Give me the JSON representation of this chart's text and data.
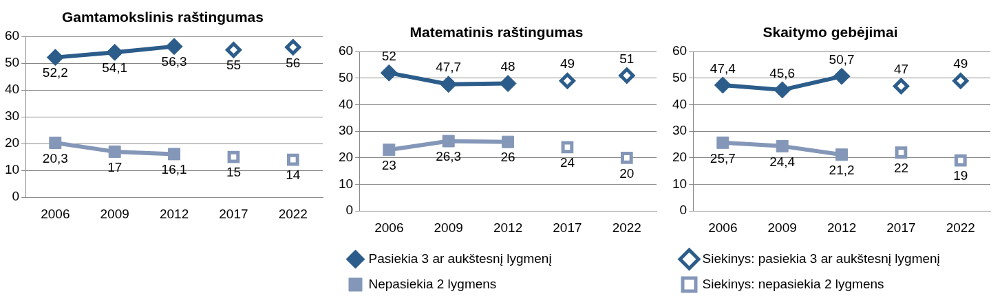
{
  "chart_data": [
    {
      "type": "line",
      "title": "Gamtamokslinis raštingumas",
      "categories": [
        "2006",
        "2009",
        "2012",
        "2017",
        "2022"
      ],
      "ylim": [
        0,
        60
      ],
      "yticks": [
        0,
        10,
        20,
        30,
        40,
        50,
        60
      ],
      "grid": "y",
      "legend": false,
      "line_style": "solid",
      "series": [
        {
          "color": "#2b5c8a",
          "marker": "diamond",
          "values": [
            52.2,
            54.1,
            56.3,
            null,
            null
          ],
          "value_labels": [
            "52,2",
            "54,1",
            "56,3",
            null,
            null
          ]
        },
        {
          "color": "#8497b8",
          "marker": "square",
          "values": [
            20.3,
            17,
            16.1,
            null,
            null
          ],
          "value_labels": [
            "20,3",
            "17",
            "16,1",
            null,
            null
          ]
        },
        {
          "type": "scatter",
          "color": "#2b5c8a",
          "marker": "diamond",
          "values": [
            null,
            null,
            null,
            55,
            56
          ],
          "value_labels": [
            null,
            null,
            null,
            "55",
            "56"
          ]
        },
        {
          "type": "scatter",
          "color": "#8497b8",
          "marker": "square",
          "values": [
            null,
            null,
            null,
            15,
            14
          ],
          "value_labels": [
            null,
            null,
            null,
            "15",
            "14"
          ]
        }
      ]
    },
    {
      "type": "line",
      "title": "Matematinis raštingumas",
      "categories": [
        "2006",
        "2009",
        "2012",
        "2017",
        "2022"
      ],
      "ylim": [
        0,
        60
      ],
      "yticks": [
        0,
        10,
        20,
        30,
        40,
        50,
        60
      ],
      "grid": "y",
      "legend": "bottom",
      "line_style": "solid",
      "series": [
        {
          "name": "Pasiekia 3 ar aukštesnį lygmenį",
          "color": "#2b5c8a",
          "marker": "diamond",
          "values": [
            52,
            47.7,
            48,
            null,
            null
          ],
          "value_labels": [
            "52",
            "47,7",
            "48",
            null,
            null
          ]
        },
        {
          "name": "Nepasiekia 2 lygmens",
          "color": "#8497b8",
          "marker": "square",
          "values": [
            23,
            26.3,
            26,
            null,
            null
          ],
          "value_labels": [
            "23",
            "26,3",
            "26",
            null,
            null
          ]
        },
        {
          "type": "scatter",
          "color": "#2b5c8a",
          "marker": "diamond",
          "values": [
            null,
            null,
            null,
            49,
            51
          ],
          "value_labels": [
            null,
            null,
            null,
            "49",
            "51"
          ]
        },
        {
          "type": "scatter",
          "color": "#8497b8",
          "marker": "square",
          "values": [
            null,
            null,
            null,
            24,
            20
          ],
          "value_labels": [
            null,
            null,
            null,
            "24",
            "20"
          ]
        }
      ]
    },
    {
      "type": "line",
      "title": "Skaitymo gebėjimai",
      "categories": [
        "2006",
        "2009",
        "2012",
        "2017",
        "2022"
      ],
      "ylim": [
        0,
        60
      ],
      "yticks": [
        0,
        10,
        20,
        30,
        40,
        50,
        60
      ],
      "grid": "y",
      "legend": "bottom",
      "line_style": "solid",
      "series": [
        {
          "color": "#2b5c8a",
          "marker": "diamond",
          "values": [
            47.4,
            45.6,
            50.7,
            null,
            null
          ],
          "value_labels": [
            "47,4",
            "45,6",
            "50,7",
            null,
            null
          ]
        },
        {
          "color": "#8497b8",
          "marker": "square",
          "values": [
            25.7,
            24.4,
            21.2,
            null,
            null
          ],
          "value_labels": [
            "25,7",
            "24,4",
            "21,2",
            null,
            null
          ]
        },
        {
          "name": "Siekinys: pasiekia 3 ar aukštesnį lygmenį",
          "type": "scatter",
          "color": "#2b5c8a",
          "marker": "diamond",
          "values": [
            null,
            null,
            null,
            47,
            49
          ],
          "value_labels": [
            null,
            null,
            null,
            "47",
            "49"
          ]
        },
        {
          "name": "Siekinys: nepasiekia 2 lygmens",
          "type": "scatter",
          "color": "#8497b8",
          "marker": "square",
          "values": [
            null,
            null,
            null,
            22,
            19
          ],
          "value_labels": [
            null,
            null,
            null,
            "22",
            "19"
          ]
        }
      ]
    }
  ]
}
